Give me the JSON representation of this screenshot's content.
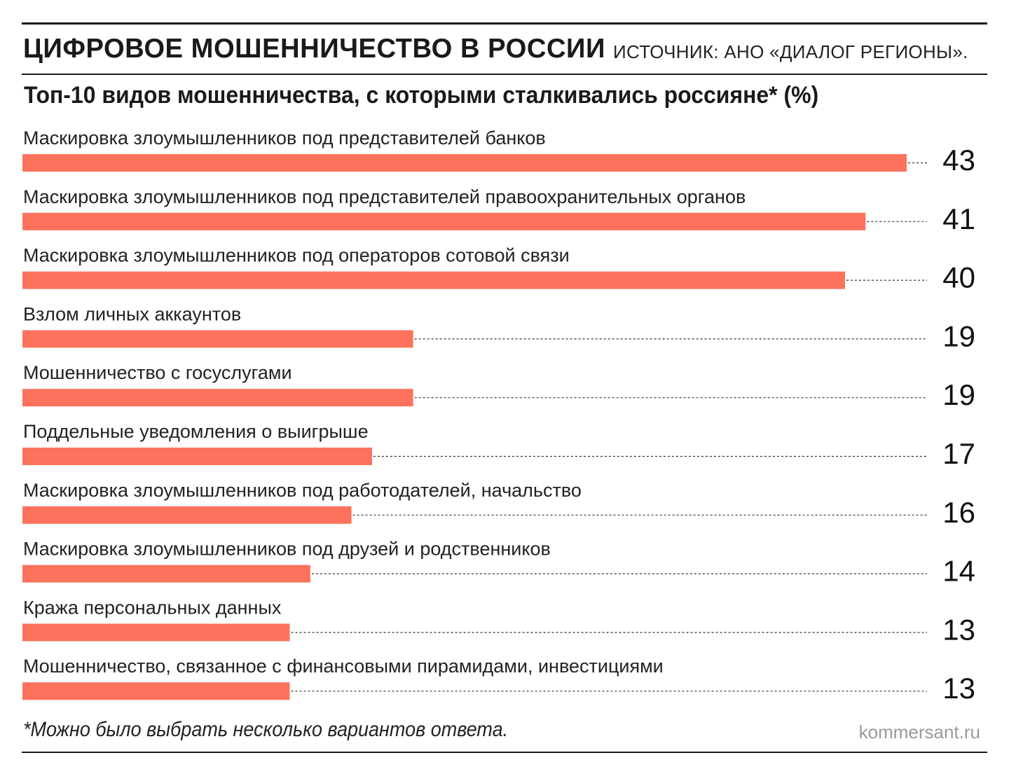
{
  "header": {
    "title": "ЦИФРОВОЕ МОШЕННИЧЕСТВО В РОССИИ",
    "source": "ИСТОЧНИК: АНО «ДИАЛОГ РЕГИОНЫ»."
  },
  "chart_data": {
    "type": "bar",
    "orientation": "horizontal",
    "title": "Топ-10 видов мошенничества, с которыми сталкивались россияне* (%)",
    "categories": [
      "Маскировка злоумышленников под представителей банков",
      "Маскировка злоумышленников под представителей правоохранительных органов",
      "Маскировка злоумышленников под операторов сотовой связи",
      "Взлом личных аккаунтов",
      "Мошенничество с госуслугами",
      "Поддельные уведомления о выигрыше",
      "Маскировка злоумышленников под работодателей, начальство",
      "Маскировка злоумышленников под друзей и родственников",
      "Кража персональных данных",
      "Мошенничество, связанное с финансовыми пирамидами, инвестициями"
    ],
    "values": [
      43,
      41,
      40,
      19,
      19,
      17,
      16,
      14,
      13,
      13
    ],
    "unit": "%",
    "xlim": [
      0,
      43
    ],
    "grid": false,
    "bar_color": "#fd725d",
    "leader_line_color": "#333333"
  },
  "footer": {
    "footnote": "*Можно было выбрать несколько вариантов ответа.",
    "site": "kommersant.ru"
  }
}
